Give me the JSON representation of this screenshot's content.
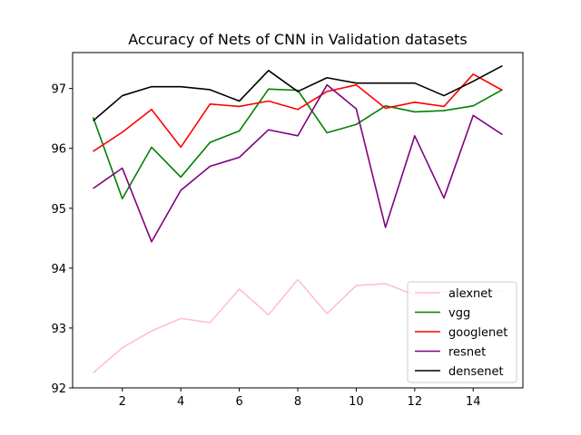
{
  "chart_data": {
    "type": "line",
    "title": "Accuracy of Nets of CNN in Validation datasets",
    "xlabel": "",
    "ylabel": "",
    "x": [
      1,
      2,
      3,
      4,
      5,
      6,
      7,
      8,
      9,
      10,
      11,
      12,
      13,
      14,
      15
    ],
    "xlim": [
      0.3,
      15.7
    ],
    "ylim": [
      92.0,
      97.6
    ],
    "xticks": [
      2,
      4,
      6,
      8,
      10,
      12,
      14
    ],
    "yticks": [
      92,
      93,
      94,
      95,
      96,
      97
    ],
    "grid": false,
    "legend_position": "lower right",
    "series": [
      {
        "name": "alexnet",
        "color": "#ffc0cb",
        "values": [
          92.25,
          92.67,
          92.95,
          93.16,
          93.09,
          93.65,
          93.22,
          93.81,
          93.24,
          93.71,
          93.74,
          93.55,
          93.6,
          93.58,
          93.62
        ]
      },
      {
        "name": "vgg",
        "color": "#008000",
        "values": [
          96.52,
          95.16,
          96.02,
          95.52,
          96.1,
          96.29,
          96.99,
          96.97,
          96.26,
          96.4,
          96.71,
          96.61,
          96.63,
          96.71,
          96.98
        ]
      },
      {
        "name": "googlenet",
        "color": "#ff0000",
        "values": [
          95.95,
          96.27,
          96.65,
          96.02,
          96.74,
          96.7,
          96.79,
          96.65,
          96.95,
          97.06,
          96.67,
          96.77,
          96.7,
          97.24,
          96.97
        ]
      },
      {
        "name": "resnet",
        "color": "#800080",
        "values": [
          95.33,
          95.67,
          94.44,
          95.3,
          95.7,
          95.85,
          96.31,
          96.21,
          97.06,
          96.66,
          94.68,
          96.21,
          95.17,
          96.55,
          96.23
        ]
      },
      {
        "name": "densenet",
        "color": "#000000",
        "values": [
          96.46,
          96.88,
          97.03,
          97.03,
          96.98,
          96.79,
          97.3,
          96.95,
          97.18,
          97.09,
          97.09,
          97.09,
          96.88,
          97.12,
          97.38
        ]
      }
    ]
  }
}
